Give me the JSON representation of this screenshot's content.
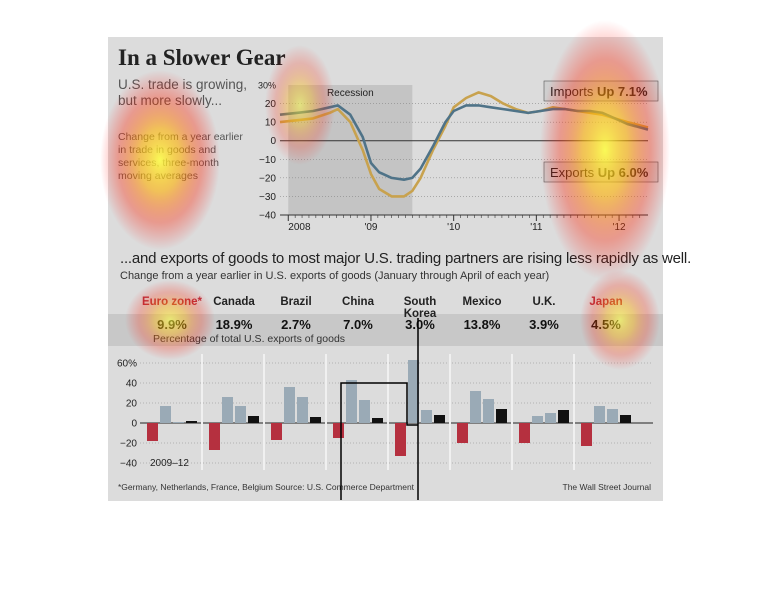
{
  "title": "In a Slower Gear",
  "lead": "U.S. trade is growing, but more slowly...",
  "note": "Change from a year earlier in trade in goods and services, three-month moving averages",
  "subheading": "...and exports of goods to most major U.S. trading partners are rising less rapidly as well.",
  "subnote": "Change from a year earlier in U.S. exports of goods (January through April of each year)",
  "pct_label": "Percentage of total U.S. exports of goods",
  "footnote": "*Germany, Netherlands, France, Belgium    Source: U.S. Commerce Department",
  "credit": "The Wall Street Journal",
  "colors": {
    "imports": "#c8a24e",
    "exports": "#4f7388",
    "neg_bar": "#b5303f",
    "bar_2010": "#9aaab6",
    "bar_2011": "#9aaab6",
    "bar_2012": "#111111"
  },
  "chart_data": [
    {
      "type": "line",
      "recession_label": "Recession",
      "imports_label": {
        "name": "Imports",
        "value": "Up 7.1%"
      },
      "exports_label": {
        "name": "Exports",
        "value": "Up 6.0%"
      },
      "y_ticks": [
        "30%",
        "20",
        "10",
        "0",
        "−10",
        "−20",
        "−30",
        "−40"
      ],
      "x_ticks": [
        "2008",
        "'09",
        "'10",
        "'11",
        "'12"
      ],
      "ylim": [
        -40,
        30
      ],
      "xlim": [
        2007.9,
        2012.35
      ],
      "recession": [
        2008.0,
        2009.5
      ],
      "series": [
        {
          "name": "Imports",
          "x": [
            2007.9,
            2008.1,
            2008.3,
            2008.5,
            2008.6,
            2008.75,
            2008.9,
            2009.0,
            2009.1,
            2009.25,
            2009.4,
            2009.5,
            2009.6,
            2009.75,
            2009.9,
            2010.0,
            2010.15,
            2010.3,
            2010.45,
            2010.6,
            2010.75,
            2010.9,
            2011.05,
            2011.2,
            2011.35,
            2011.5,
            2011.65,
            2011.8,
            2011.95,
            2012.1,
            2012.35
          ],
          "values": [
            10,
            11,
            12,
            15,
            17,
            10,
            -5,
            -18,
            -26,
            -30,
            -30,
            -27,
            -20,
            -5,
            8,
            18,
            23,
            26,
            24,
            20,
            17,
            15,
            16,
            18,
            17,
            16,
            15,
            14,
            12,
            10,
            7.1
          ]
        },
        {
          "name": "Exports",
          "x": [
            2007.9,
            2008.1,
            2008.3,
            2008.5,
            2008.6,
            2008.75,
            2008.9,
            2009.0,
            2009.1,
            2009.25,
            2009.4,
            2009.5,
            2009.6,
            2009.75,
            2009.9,
            2010.0,
            2010.15,
            2010.3,
            2010.45,
            2010.6,
            2010.75,
            2010.9,
            2011.05,
            2011.2,
            2011.35,
            2011.5,
            2011.65,
            2011.8,
            2011.95,
            2012.1,
            2012.35
          ],
          "values": [
            14,
            15,
            16,
            18,
            19,
            14,
            2,
            -12,
            -17,
            -20,
            -21,
            -20,
            -15,
            -3,
            10,
            16,
            19,
            19,
            18,
            17,
            16,
            15,
            16,
            17,
            17,
            16,
            16,
            15,
            12,
            9,
            6.0
          ]
        }
      ]
    },
    {
      "type": "bar",
      "legend_label": "2009–12",
      "y_ticks": [
        "60%",
        "40",
        "20",
        "0",
        "−20",
        "−40"
      ],
      "ylim": [
        -45,
        65
      ],
      "categories": [
        "Euro zone*",
        "Canada",
        "Brazil",
        "China",
        "South Korea",
        "Mexico",
        "U.K.",
        "Japan"
      ],
      "share_of_exports": [
        "9.9%",
        "18.9%",
        "2.7%",
        "7.0%",
        "3.0%",
        "13.8%",
        "3.9%",
        "4.5%"
      ],
      "highlight": [
        true,
        false,
        false,
        false,
        false,
        false,
        false,
        true
      ],
      "series": [
        {
          "name": "2009",
          "values": [
            -18,
            -27,
            -17,
            -15,
            -33,
            -20,
            -20,
            -23
          ]
        },
        {
          "name": "2010",
          "values": [
            17,
            26,
            36,
            43,
            63,
            32,
            7,
            17
          ]
        },
        {
          "name": "2011",
          "values": [
            1,
            17,
            26,
            23,
            13,
            24,
            10,
            14
          ]
        },
        {
          "name": "2012",
          "values": [
            2,
            7,
            6,
            5,
            8,
            14,
            13,
            8
          ]
        }
      ]
    }
  ]
}
